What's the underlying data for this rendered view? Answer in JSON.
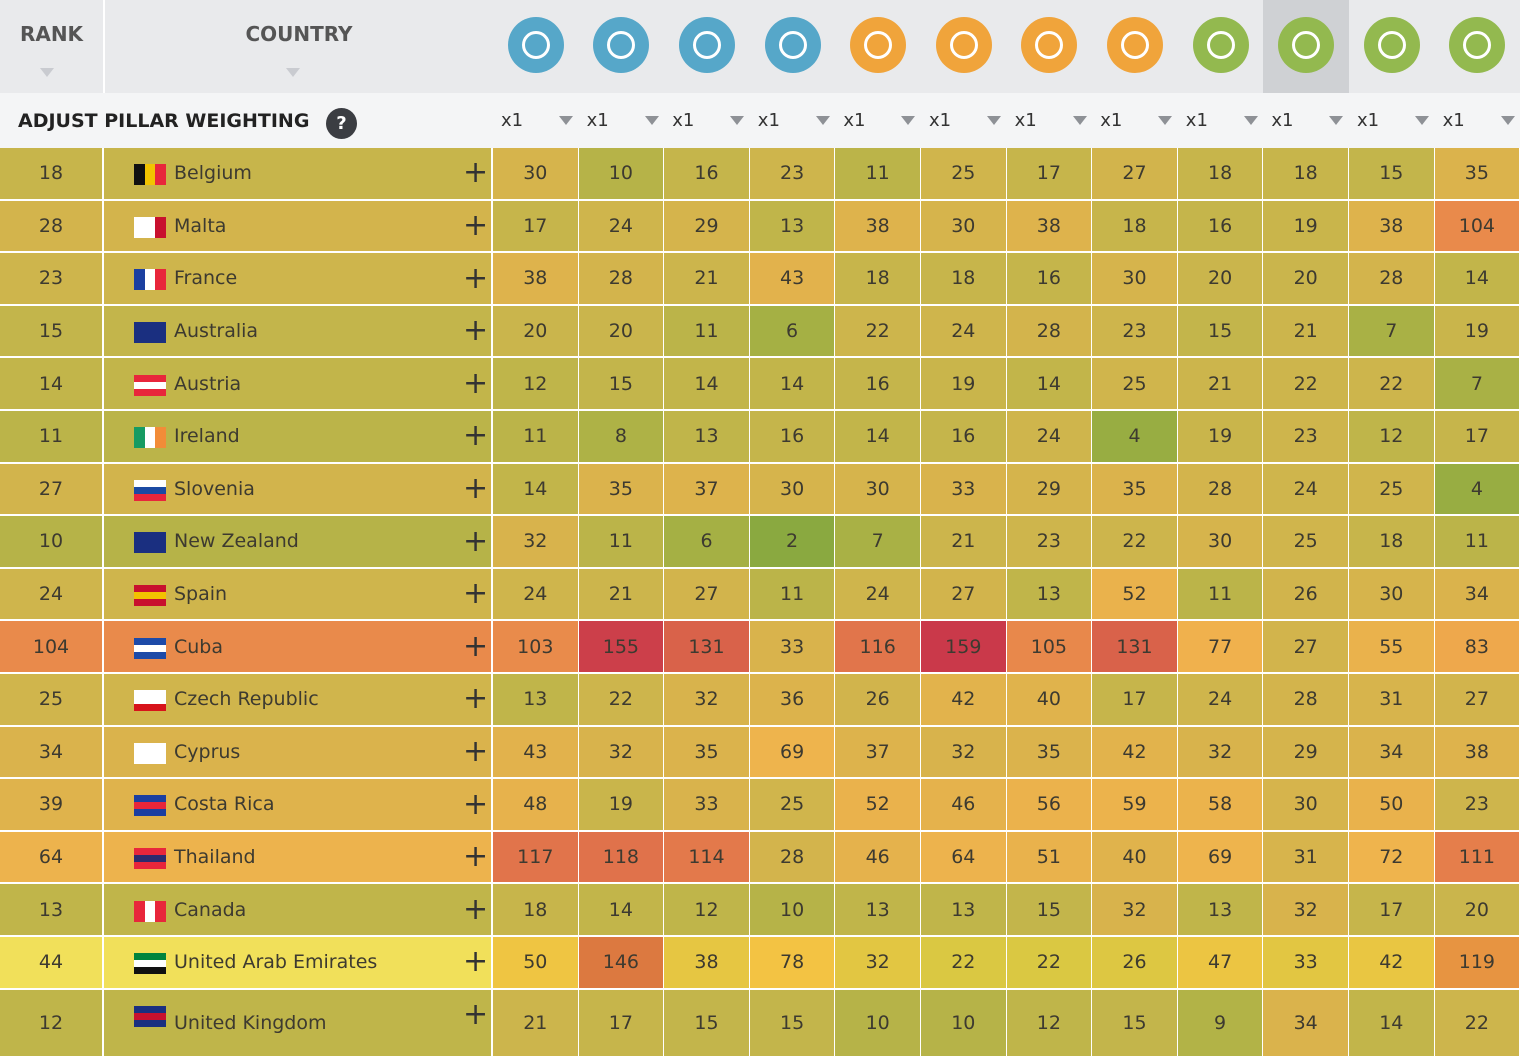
{
  "header": {
    "rank": "RANK",
    "country": "COUNTRY"
  },
  "weighting": {
    "label": "ADJUST PILLAR WEIGHTING",
    "help": "?",
    "weights": [
      "x1",
      "x1",
      "x1",
      "x1",
      "x1",
      "x1",
      "x1",
      "x1",
      "x1",
      "x1",
      "x1",
      "x1"
    ]
  },
  "rows": [
    {
      "rank": 18,
      "country": "Belgium",
      "scores": [
        30,
        10,
        16,
        23,
        11,
        25,
        17,
        27,
        18,
        18,
        15,
        35
      ]
    },
    {
      "rank": 28,
      "country": "Malta",
      "scores": [
        17,
        24,
        29,
        13,
        38,
        30,
        38,
        18,
        16,
        19,
        38,
        104
      ]
    },
    {
      "rank": 23,
      "country": "France",
      "scores": [
        38,
        28,
        21,
        43,
        18,
        18,
        16,
        30,
        20,
        20,
        28,
        14
      ]
    },
    {
      "rank": 15,
      "country": "Australia",
      "scores": [
        20,
        20,
        11,
        6,
        22,
        24,
        28,
        23,
        15,
        21,
        7,
        19
      ]
    },
    {
      "rank": 14,
      "country": "Austria",
      "scores": [
        12,
        15,
        14,
        14,
        16,
        19,
        14,
        25,
        21,
        22,
        22,
        7
      ]
    },
    {
      "rank": 11,
      "country": "Ireland",
      "scores": [
        11,
        8,
        13,
        16,
        14,
        16,
        24,
        4,
        19,
        23,
        12,
        17
      ]
    },
    {
      "rank": 27,
      "country": "Slovenia",
      "scores": [
        14,
        35,
        37,
        30,
        30,
        33,
        29,
        35,
        28,
        24,
        25,
        4
      ]
    },
    {
      "rank": 10,
      "country": "New Zealand",
      "scores": [
        32,
        11,
        6,
        2,
        7,
        21,
        23,
        22,
        30,
        25,
        18,
        11
      ]
    },
    {
      "rank": 24,
      "country": "Spain",
      "scores": [
        24,
        21,
        27,
        11,
        24,
        27,
        13,
        52,
        11,
        26,
        30,
        34
      ]
    },
    {
      "rank": 104,
      "country": "Cuba",
      "scores": [
        103,
        155,
        131,
        33,
        116,
        159,
        105,
        131,
        77,
        27,
        55,
        83
      ]
    },
    {
      "rank": 25,
      "country": "Czech Republic",
      "scores": [
        13,
        22,
        32,
        36,
        26,
        42,
        40,
        17,
        24,
        28,
        31,
        27
      ]
    },
    {
      "rank": 34,
      "country": "Cyprus",
      "scores": [
        43,
        32,
        35,
        69,
        37,
        32,
        35,
        42,
        32,
        29,
        34,
        38
      ]
    },
    {
      "rank": 39,
      "country": "Costa Rica",
      "scores": [
        48,
        19,
        33,
        25,
        52,
        46,
        56,
        59,
        58,
        30,
        50,
        23
      ]
    },
    {
      "rank": 64,
      "country": "Thailand",
      "scores": [
        117,
        118,
        114,
        28,
        46,
        64,
        51,
        40,
        69,
        31,
        72,
        111
      ]
    },
    {
      "rank": 13,
      "country": "Canada",
      "scores": [
        18,
        14,
        12,
        10,
        13,
        13,
        15,
        32,
        13,
        32,
        17,
        20
      ]
    },
    {
      "rank": 44,
      "country": "United Arab Emirates",
      "scores": [
        50,
        146,
        38,
        78,
        32,
        22,
        22,
        26,
        47,
        33,
        42,
        119
      ]
    },
    {
      "rank": 12,
      "country": "United Kingdom",
      "scores": [
        21,
        17,
        15,
        15,
        10,
        10,
        12,
        15,
        9,
        34,
        14,
        22
      ]
    }
  ]
}
